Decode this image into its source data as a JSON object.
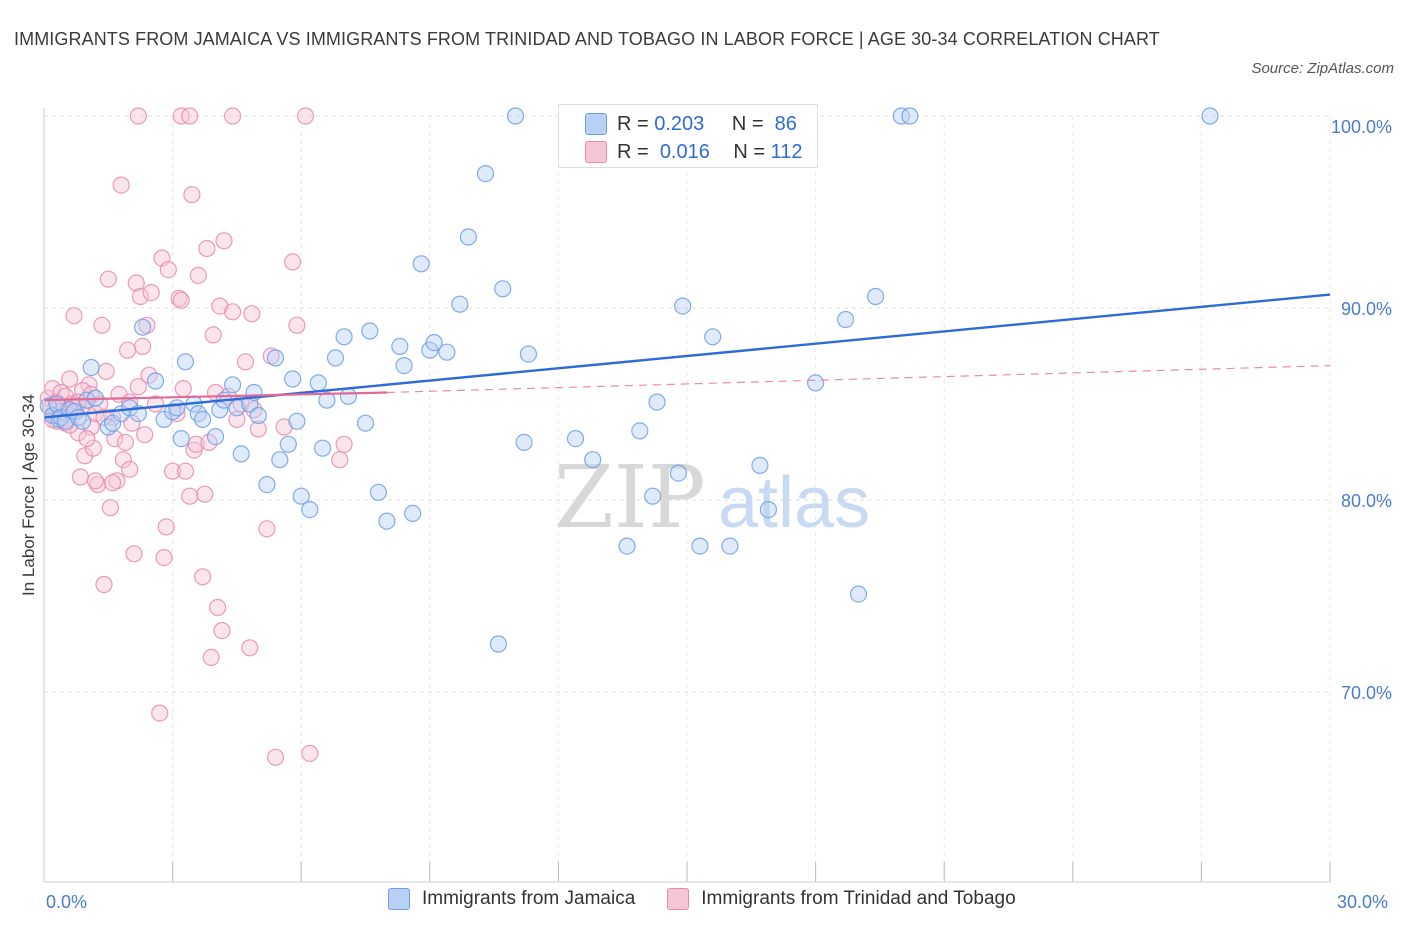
{
  "chart_data": {
    "type": "scatter",
    "title": "IMMIGRANTS FROM JAMAICA VS IMMIGRANTS FROM TRINIDAD AND TOBAGO IN LABOR FORCE | AGE 30-34 CORRELATION CHART",
    "source": "Source: ZipAtlas.com",
    "xlabel": "",
    "ylabel": "In Labor Force | Age 30-34",
    "xlim": [
      0,
      30
    ],
    "ylim": [
      60,
      100
    ],
    "x_tick_labels": [
      "0.0%",
      "30.0%"
    ],
    "y_ticks": [
      70,
      80,
      90,
      100
    ],
    "y_tick_labels": [
      "70.0%",
      "80.0%",
      "90.0%",
      "100.0%"
    ],
    "grid": true,
    "watermark": {
      "zip": "ZIP",
      "atlas": "atlas"
    },
    "legend_labels": {
      "r": "R =",
      "n": "N ="
    },
    "series": [
      {
        "name": "Immigrants from Jamaica",
        "color": "#6d9ee8",
        "fill": "#b9d0f5",
        "R": "0.203",
        "N": "86",
        "trend": {
          "x0": 0,
          "y0": 84.3,
          "x1": 30,
          "y1": 90.7,
          "dashed_from": null
        },
        "points": [
          [
            0.1,
            84.9
          ],
          [
            0.2,
            84.4
          ],
          [
            0.3,
            85.0
          ],
          [
            0.35,
            84.2
          ],
          [
            0.4,
            84.3
          ],
          [
            0.5,
            84.1
          ],
          [
            0.6,
            84.7
          ],
          [
            0.7,
            84.6
          ],
          [
            0.8,
            84.3
          ],
          [
            0.9,
            84.1
          ],
          [
            1.0,
            85.2
          ],
          [
            1.1,
            86.9
          ],
          [
            1.2,
            85.3
          ],
          [
            1.5,
            83.8
          ],
          [
            1.6,
            84.0
          ],
          [
            1.8,
            84.5
          ],
          [
            2.0,
            84.8
          ],
          [
            2.2,
            84.5
          ],
          [
            2.3,
            89.0
          ],
          [
            2.6,
            86.2
          ],
          [
            2.8,
            84.2
          ],
          [
            3.0,
            84.6
          ],
          [
            3.1,
            84.8
          ],
          [
            3.2,
            83.2
          ],
          [
            3.3,
            87.2
          ],
          [
            3.5,
            85.0
          ],
          [
            3.6,
            84.5
          ],
          [
            3.7,
            84.2
          ],
          [
            4.0,
            83.3
          ],
          [
            4.1,
            84.7
          ],
          [
            4.2,
            85.2
          ],
          [
            4.4,
            86.0
          ],
          [
            4.5,
            84.8
          ],
          [
            4.6,
            82.4
          ],
          [
            4.8,
            85.0
          ],
          [
            4.9,
            85.6
          ],
          [
            5.0,
            84.4
          ],
          [
            5.2,
            80.8
          ],
          [
            5.4,
            87.4
          ],
          [
            5.5,
            82.1
          ],
          [
            5.7,
            82.9
          ],
          [
            5.8,
            86.3
          ],
          [
            5.9,
            84.1
          ],
          [
            6.0,
            80.2
          ],
          [
            6.2,
            79.5
          ],
          [
            6.4,
            86.1
          ],
          [
            6.5,
            82.7
          ],
          [
            6.6,
            85.2
          ],
          [
            6.8,
            87.4
          ],
          [
            7.0,
            88.5
          ],
          [
            7.1,
            85.4
          ],
          [
            7.5,
            84.0
          ],
          [
            7.6,
            88.8
          ],
          [
            7.8,
            80.4
          ],
          [
            8.0,
            78.9
          ],
          [
            8.3,
            88.0
          ],
          [
            8.4,
            87.0
          ],
          [
            8.6,
            79.3
          ],
          [
            8.8,
            92.3
          ],
          [
            9.0,
            87.8
          ],
          [
            9.1,
            88.2
          ],
          [
            9.4,
            87.7
          ],
          [
            9.7,
            90.2
          ],
          [
            9.9,
            93.7
          ],
          [
            10.3,
            97.0
          ],
          [
            10.6,
            72.5
          ],
          [
            10.7,
            91.0
          ],
          [
            11.0,
            100.0
          ],
          [
            11.3,
            87.6
          ],
          [
            11.2,
            83.0
          ],
          [
            12.4,
            83.2
          ],
          [
            12.8,
            82.1
          ],
          [
            13.6,
            77.6
          ],
          [
            13.9,
            83.6
          ],
          [
            14.2,
            80.2
          ],
          [
            14.3,
            85.1
          ],
          [
            14.8,
            81.4
          ],
          [
            14.9,
            90.1
          ],
          [
            15.3,
            77.6
          ],
          [
            15.6,
            88.5
          ],
          [
            16.0,
            77.6
          ],
          [
            16.7,
            81.8
          ],
          [
            16.9,
            79.5
          ],
          [
            18.0,
            86.1
          ],
          [
            18.7,
            89.4
          ],
          [
            19.4,
            90.6
          ],
          [
            20.0,
            100.0
          ],
          [
            20.2,
            100.0
          ],
          [
            27.2,
            100.0
          ],
          [
            19.0,
            75.1
          ]
        ]
      },
      {
        "name": "Immigrants from Trinidad and Tobago",
        "color": "#e98aab",
        "fill": "#f7c6d6",
        "R": "0.016",
        "N": "112",
        "trend": {
          "x0": 0,
          "y0": 85.2,
          "x1": 8.0,
          "y1": 85.6,
          "dashed_to_x": 30,
          "dashed_to_y": 87.0
        },
        "points": [
          [
            0.1,
            85.3
          ],
          [
            0.15,
            84.8
          ],
          [
            0.2,
            85.8
          ],
          [
            0.25,
            84.4
          ],
          [
            0.3,
            85.1
          ],
          [
            0.35,
            84.9
          ],
          [
            0.4,
            85.6
          ],
          [
            0.45,
            84.2
          ],
          [
            0.5,
            85.4
          ],
          [
            0.55,
            84.7
          ],
          [
            0.6,
            86.3
          ],
          [
            0.65,
            85.0
          ],
          [
            0.7,
            89.6
          ],
          [
            0.75,
            84.6
          ],
          [
            0.8,
            83.5
          ],
          [
            0.85,
            81.2
          ],
          [
            0.9,
            84.8
          ],
          [
            0.95,
            82.3
          ],
          [
            1.0,
            85.2
          ],
          [
            1.05,
            86.0
          ],
          [
            1.1,
            83.8
          ],
          [
            1.15,
            82.7
          ],
          [
            1.2,
            84.5
          ],
          [
            1.25,
            80.8
          ],
          [
            1.3,
            85.0
          ],
          [
            1.35,
            89.1
          ],
          [
            1.4,
            75.6
          ],
          [
            1.45,
            86.7
          ],
          [
            1.5,
            91.5
          ],
          [
            1.55,
            79.6
          ],
          [
            1.6,
            84.3
          ],
          [
            1.65,
            83.2
          ],
          [
            1.7,
            81.0
          ],
          [
            1.75,
            85.5
          ],
          [
            1.8,
            96.4
          ],
          [
            1.85,
            82.1
          ],
          [
            1.9,
            83.0
          ],
          [
            1.95,
            87.8
          ],
          [
            2.0,
            81.6
          ],
          [
            2.05,
            84.0
          ],
          [
            2.1,
            77.2
          ],
          [
            2.15,
            91.3
          ],
          [
            2.2,
            85.9
          ],
          [
            2.25,
            90.6
          ],
          [
            2.3,
            88.0
          ],
          [
            2.35,
            83.4
          ],
          [
            2.4,
            89.1
          ],
          [
            2.45,
            86.5
          ],
          [
            2.5,
            90.8
          ],
          [
            2.6,
            85.0
          ],
          [
            2.7,
            68.9
          ],
          [
            2.75,
            92.6
          ],
          [
            2.8,
            77.0
          ],
          [
            2.85,
            78.6
          ],
          [
            2.9,
            92.0
          ],
          [
            3.0,
            81.5
          ],
          [
            3.1,
            84.5
          ],
          [
            3.15,
            90.5
          ],
          [
            3.2,
            90.4
          ],
          [
            3.25,
            85.8
          ],
          [
            3.3,
            81.5
          ],
          [
            3.4,
            80.2
          ],
          [
            3.45,
            95.9
          ],
          [
            3.5,
            82.6
          ],
          [
            3.55,
            82.9
          ],
          [
            3.6,
            91.7
          ],
          [
            3.7,
            76.0
          ],
          [
            3.75,
            80.3
          ],
          [
            3.8,
            93.1
          ],
          [
            3.85,
            83.0
          ],
          [
            3.9,
            71.8
          ],
          [
            3.95,
            88.6
          ],
          [
            4.0,
            85.6
          ],
          [
            4.05,
            74.4
          ],
          [
            4.1,
            90.1
          ],
          [
            4.15,
            73.2
          ],
          [
            4.2,
            93.5
          ],
          [
            4.3,
            85.4
          ],
          [
            4.4,
            89.8
          ],
          [
            4.5,
            84.2
          ],
          [
            4.6,
            85.0
          ],
          [
            4.7,
            87.2
          ],
          [
            4.8,
            72.3
          ],
          [
            4.85,
            89.7
          ],
          [
            4.9,
            84.7
          ],
          [
            5.0,
            83.7
          ],
          [
            5.2,
            78.5
          ],
          [
            5.3,
            87.5
          ],
          [
            5.4,
            66.6
          ],
          [
            5.6,
            83.8
          ],
          [
            5.8,
            92.4
          ],
          [
            5.9,
            89.1
          ],
          [
            6.2,
            66.8
          ],
          [
            6.9,
            82.1
          ],
          [
            7.0,
            82.9
          ],
          [
            2.2,
            100.0
          ],
          [
            3.2,
            100.0
          ],
          [
            3.4,
            100.0
          ],
          [
            4.4,
            100.0
          ],
          [
            6.1,
            100.0
          ],
          [
            0.5,
            84.0
          ],
          [
            0.6,
            83.9
          ],
          [
            1.0,
            83.2
          ],
          [
            1.2,
            81.0
          ],
          [
            1.4,
            84.3
          ],
          [
            0.3,
            84.1
          ],
          [
            0.4,
            84.6
          ],
          [
            0.9,
            85.7
          ],
          [
            1.1,
            85.5
          ],
          [
            1.6,
            80.9
          ],
          [
            2.0,
            85.1
          ],
          [
            0.2,
            84.2
          ],
          [
            0.7,
            84.9
          ],
          [
            0.8,
            85.1
          ]
        ]
      }
    ]
  }
}
